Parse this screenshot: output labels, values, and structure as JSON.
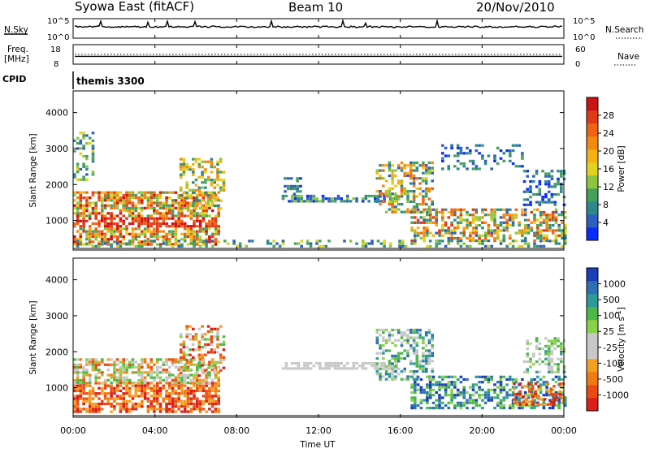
{
  "header": {
    "station": "Syowa East (fitACF)",
    "beam": "Beam 10",
    "date": "20/Nov/2010"
  },
  "strip_noise": {
    "left_label": "N.Sky",
    "right_label": "N.Search",
    "left_ticks": [
      "10^5",
      "10^0"
    ],
    "right_ticks": [
      "10^5",
      "10^0"
    ]
  },
  "strip_freq": {
    "left_label_line1": "Freq.",
    "left_label_line2": "[MHz]",
    "right_label": "Nave",
    "left_ticks": [
      "18",
      "8"
    ],
    "right_ticks": [
      "60",
      "0"
    ],
    "freq_mhz": 12,
    "nave": 30
  },
  "cpid": {
    "label": "CPID",
    "value": "themis 3300"
  },
  "axes": {
    "ylabel": "Slant Range [km]",
    "xlabel": "Time UT",
    "yticks": [
      "1000",
      "2000",
      "3000",
      "4000"
    ],
    "xticks": [
      "00:00",
      "04:00",
      "08:00",
      "12:00",
      "16:00",
      "20:00",
      "00:00"
    ],
    "x_range_hours": [
      0,
      24
    ],
    "y_range_km": [
      180,
      4600
    ]
  },
  "power_colorbar": {
    "label": "Power [dB]",
    "ticks": [
      "4",
      "8",
      "12",
      "16",
      "20",
      "24",
      "28"
    ],
    "colors": [
      "#0a2cff",
      "#2f5fbf",
      "#2e8a8a",
      "#45a05c",
      "#8cc63f",
      "#e0d21e",
      "#f5b016",
      "#f28a12",
      "#ef6414",
      "#e03a17",
      "#cc1313"
    ]
  },
  "velocity_colorbar": {
    "label": "Velocity [m s",
    "label_sup": "-1",
    "label_end": "]",
    "ticks": [
      "1000",
      "500",
      "100",
      "25",
      "-25",
      "-100",
      "-500",
      "-1000"
    ],
    "colors": [
      "#1c3db8",
      "#2f6fb3",
      "#2e9a9a",
      "#4cb848",
      "#8ad24a",
      "#c8c8c8",
      "#c8c8c8",
      "#f2a022",
      "#f07a14",
      "#ea4a14",
      "#dd1c1c"
    ]
  },
  "chart_data": [
    {
      "type": "heatmap",
      "title": "Power [dB]",
      "x_unit": "hours UT",
      "y_unit": "km",
      "regions": [
        {
          "x": [
            0.0,
            7.2
          ],
          "y": [
            300,
            1800
          ],
          "density": 0.7,
          "levels": [
            3,
            10
          ],
          "hot_band_km": [
            750,
            1050
          ]
        },
        {
          "x": [
            0.0,
            1.0
          ],
          "y": [
            2100,
            3400
          ],
          "density": 0.35,
          "levels": [
            1,
            5
          ]
        },
        {
          "x": [
            5.2,
            7.4
          ],
          "y": [
            1300,
            2700
          ],
          "density": 0.45,
          "levels": [
            2,
            7
          ]
        },
        {
          "x": [
            10.2,
            15.8
          ],
          "y": [
            1500,
            1700
          ],
          "density": 0.75,
          "levels": [
            0,
            4
          ]
        },
        {
          "x": [
            10.3,
            11.2
          ],
          "y": [
            1700,
            2200
          ],
          "density": 0.35,
          "levels": [
            0,
            3
          ]
        },
        {
          "x": [
            14.8,
            17.5
          ],
          "y": [
            1200,
            2600
          ],
          "density": 0.5,
          "levels": [
            1,
            8
          ]
        },
        {
          "x": [
            16.5,
            24.0
          ],
          "y": [
            400,
            1300
          ],
          "density": 0.55,
          "levels": [
            1,
            9
          ]
        },
        {
          "x": [
            18.0,
            22.0
          ],
          "y": [
            2400,
            3100
          ],
          "density": 0.25,
          "levels": [
            0,
            3
          ]
        },
        {
          "x": [
            22.0,
            24.0
          ],
          "y": [
            1400,
            2400
          ],
          "density": 0.45,
          "levels": [
            0,
            3
          ]
        },
        {
          "x": [
            0.0,
            24.0
          ],
          "y": [
            250,
            450
          ],
          "density": 0.3,
          "levels": [
            1,
            5
          ]
        }
      ]
    },
    {
      "type": "heatmap",
      "title": "Velocity [m s-1]",
      "x_unit": "hours UT",
      "y_unit": "km",
      "regions": [
        {
          "x": [
            0.0,
            7.2
          ],
          "y": [
            300,
            1100
          ],
          "density": 0.7,
          "levels": [
            7,
            10
          ]
        },
        {
          "x": [
            0.0,
            7.2
          ],
          "y": [
            1100,
            1800
          ],
          "density": 0.6,
          "levels": [
            3,
            9
          ]
        },
        {
          "x": [
            5.2,
            7.4
          ],
          "y": [
            1300,
            2700
          ],
          "density": 0.45,
          "levels": [
            3,
            10
          ]
        },
        {
          "x": [
            10.2,
            15.8
          ],
          "y": [
            1500,
            1700
          ],
          "density": 0.75,
          "levels": [
            5,
            6
          ]
        },
        {
          "x": [
            14.8,
            17.5
          ],
          "y": [
            1200,
            2600
          ],
          "density": 0.5,
          "levels": [
            1,
            6
          ]
        },
        {
          "x": [
            16.5,
            24.0
          ],
          "y": [
            400,
            1300
          ],
          "density": 0.55,
          "levels": [
            0,
            4
          ]
        },
        {
          "x": [
            21.5,
            24.0
          ],
          "y": [
            500,
            1100
          ],
          "density": 0.45,
          "levels": [
            7,
            10
          ]
        },
        {
          "x": [
            22.0,
            24.0
          ],
          "y": [
            1400,
            2400
          ],
          "density": 0.4,
          "levels": [
            2,
            6
          ]
        }
      ]
    }
  ]
}
